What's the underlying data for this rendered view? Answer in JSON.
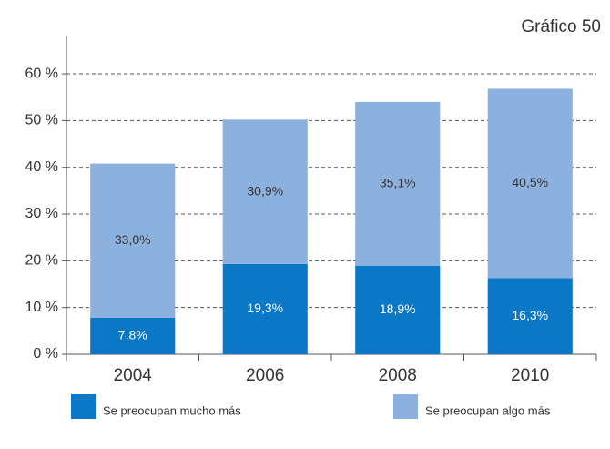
{
  "chart_data": {
    "type": "stacked-bar",
    "title": "Gráfico 50",
    "categories": [
      "2004",
      "2006",
      "2008",
      "2010"
    ],
    "series": [
      {
        "name": "Se preocupan mucho más",
        "color": "#0a77c7",
        "values": [
          7.8,
          19.3,
          18.9,
          16.3
        ],
        "value_labels": [
          "7,8%",
          "19,3%",
          "18,9%",
          "16,3%"
        ]
      },
      {
        "name": "Se preocupan algo más",
        "color": "#8db1de",
        "values": [
          33.0,
          30.9,
          35.1,
          40.5
        ],
        "value_labels": [
          "33,0%",
          "30,9%",
          "35,1%",
          "40,5%"
        ]
      }
    ],
    "ylim": [
      0,
      68
    ],
    "yticks": [
      {
        "value": 0,
        "label": "0 %"
      },
      {
        "value": 10,
        "label": "10 %"
      },
      {
        "value": 20,
        "label": "20 %"
      },
      {
        "value": 30,
        "label": "30 %"
      },
      {
        "value": 40,
        "label": "40 %"
      },
      {
        "value": 50,
        "label": "50 %"
      },
      {
        "value": 60,
        "label": "60 %"
      }
    ],
    "grid": true
  }
}
